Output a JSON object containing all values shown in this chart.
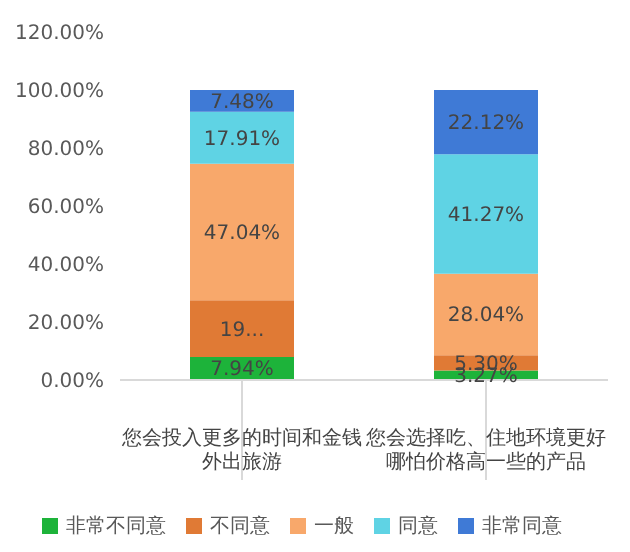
{
  "chart_data": {
    "type": "bar",
    "stacked": true,
    "categories": [
      "您会投入更多的时间和金钱外出旅游",
      "您会选择吃、住地环境更好哪怕价格高一些的产品"
    ],
    "series": [
      {
        "name": "非常不同意",
        "color": "#1db33a",
        "values": [
          7.94,
          3.27
        ],
        "value_labels": [
          "7.94%",
          "3.27%"
        ]
      },
      {
        "name": "不同意",
        "color": "#e07a35",
        "values": [
          19.6,
          5.3
        ],
        "value_labels": [
          "19...",
          "5.30%"
        ]
      },
      {
        "name": "一般",
        "color": "#f8a86b",
        "values": [
          47.04,
          28.04
        ],
        "value_labels": [
          "47.04%",
          "28.04%"
        ]
      },
      {
        "name": "同意",
        "color": "#5fd3e4",
        "values": [
          17.91,
          41.27
        ],
        "value_labels": [
          "17.91%",
          "41.27%"
        ]
      },
      {
        "name": "非常同意",
        "color": "#3f7ad6",
        "values": [
          7.48,
          22.12
        ],
        "value_labels": [
          "7.48%",
          "22.12%"
        ]
      }
    ],
    "ylim": [
      0,
      120
    ],
    "yticks": [
      {
        "value": 0,
        "label": "0.00%"
      },
      {
        "value": 20,
        "label": "20.00%"
      },
      {
        "value": 40,
        "label": "40.00%"
      },
      {
        "value": 60,
        "label": "60.00%"
      },
      {
        "value": 80,
        "label": "80.00%"
      },
      {
        "value": 100,
        "label": "100.00%"
      },
      {
        "value": 120,
        "label": "120.00%"
      }
    ],
    "grid": false,
    "legend": "bottom"
  }
}
